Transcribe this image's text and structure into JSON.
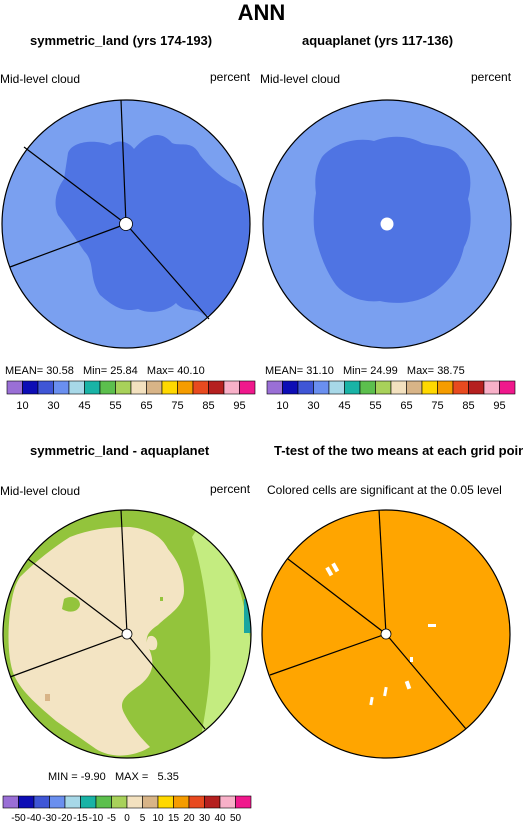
{
  "main_title": "ANN",
  "panels": [
    {
      "title": "symmetric_land (yrs 174-193)",
      "left_label": "Mid-level cloud",
      "right_label": "percent",
      "stats": {
        "mean_label": "MEAN=",
        "mean": "30.58",
        "min_label": "Min=",
        "min": "25.84",
        "max_label": "Max=",
        "max": "40.10"
      },
      "colorbar": {
        "colors": [
          "#9a6fd6",
          "#0d0db5",
          "#3f56d6",
          "#6a8fef",
          "#a7d8e8",
          "#19b3a6",
          "#5cbf4d",
          "#a8d15a",
          "#f3e1bf",
          "#d8b487",
          "#ffd800",
          "#f59c00",
          "#e84a1f",
          "#b5201f",
          "#f8b0c8",
          "#f0188c"
        ],
        "labels": [
          "10",
          "30",
          "45",
          "55",
          "65",
          "75",
          "85",
          "95"
        ]
      }
    },
    {
      "title": "aquaplanet (yrs 117-136)",
      "left_label": "Mid-level cloud",
      "right_label": "percent",
      "stats": {
        "mean_label": "MEAN=",
        "mean": "31.10",
        "min_label": "Min=",
        "min": "24.99",
        "max_label": "Max=",
        "max": "38.75"
      },
      "colorbar": {
        "colors": [
          "#9a6fd6",
          "#0d0db5",
          "#3f56d6",
          "#6a8fef",
          "#a7d8e8",
          "#19b3a6",
          "#5cbf4d",
          "#a8d15a",
          "#f3e1bf",
          "#d8b487",
          "#ffd800",
          "#f59c00",
          "#e84a1f",
          "#b5201f",
          "#f8b0c8",
          "#f0188c"
        ],
        "labels": [
          "10",
          "30",
          "45",
          "55",
          "65",
          "75",
          "85",
          "95"
        ]
      }
    },
    {
      "title": "symmetric_land - aquaplanet",
      "left_label": "Mid-level cloud",
      "right_label": "percent",
      "stats": {
        "min_label": "MIN =",
        "min": "-9.90",
        "max_label": "MAX =",
        "max": "5.35"
      },
      "colorbar": {
        "colors": [
          "#9a6fd6",
          "#0d0db5",
          "#3f56d6",
          "#6a8fef",
          "#a7d8e8",
          "#19b3a6",
          "#5cbf4d",
          "#a8d15a",
          "#f3e1bf",
          "#d8b487",
          "#ffd800",
          "#f59c00",
          "#e84a1f",
          "#b5201f",
          "#f8b0c8",
          "#f0188c"
        ],
        "labels": [
          "-50",
          "-40",
          "-30",
          "-20",
          "-15",
          "-10",
          "-5",
          "0",
          "5",
          "10",
          "15",
          "20",
          "30",
          "40",
          "50"
        ]
      }
    },
    {
      "title": "T-test of the two means at each grid point",
      "subtitle": "Colored cells are significant at the 0.05 level"
    }
  ],
  "colors": {
    "light_blue": "#7aa0f0",
    "mid_blue": "#4f74e3",
    "pale_cyan": "#a8dcea",
    "green": "#93c43c",
    "beige": "#f3e4c3",
    "light_green": "#c4ec80",
    "teal": "#1aa6a0",
    "tan": "#d8b487",
    "orange": "#ffa500"
  }
}
